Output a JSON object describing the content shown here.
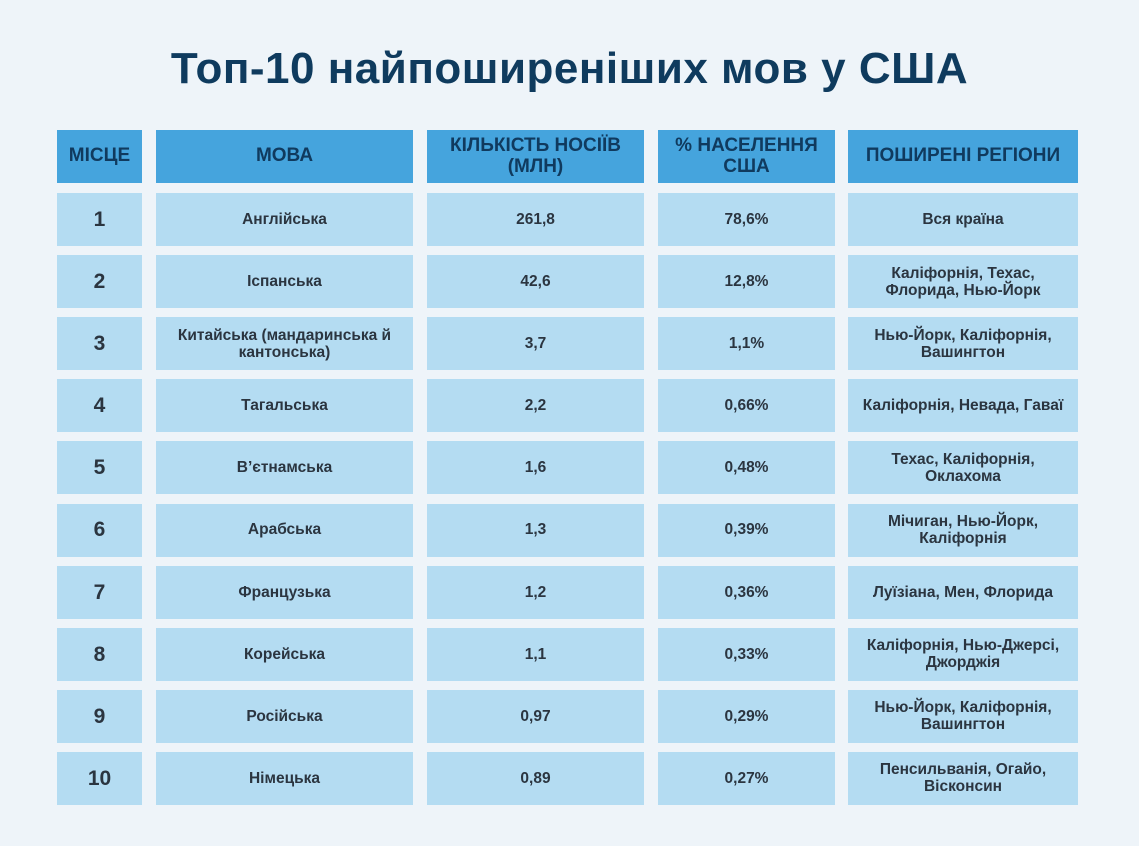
{
  "title": "Топ-10 найпоширеніших мов у США",
  "table": {
    "headers": [
      "МІСЦЕ",
      "МОВА",
      "КІЛЬКІСТЬ НОСІЇВ (МЛН)",
      "% НАСЕЛЕННЯ США",
      "ПОШИРЕНІ РЕГІОНИ"
    ],
    "rows": [
      [
        "1",
        "Англійська",
        "261,8",
        "78,6%",
        "Вся країна"
      ],
      [
        "2",
        "Іспанська",
        "42,6",
        "12,8%",
        "Каліфорнія, Техас, Флорида, Нью-Йорк"
      ],
      [
        "3",
        "Китайська (мандаринська й кантонська)",
        "3,7",
        "1,1%",
        "Нью-Йорк, Каліфорнія, Вашингтон"
      ],
      [
        "4",
        "Тагальська",
        "2,2",
        "0,66%",
        "Каліфорнія, Невада, Гаваї"
      ],
      [
        "5",
        "В’єтнамська",
        "1,6",
        "0,48%",
        "Техас, Каліфорнія, Оклахома"
      ],
      [
        "6",
        "Арабська",
        "1,3",
        "0,39%",
        "Мічиган, Нью-Йорк, Каліфорнія"
      ],
      [
        "7",
        "Французька",
        "1,2",
        "0,36%",
        "Луїзіана, Мен, Флорида"
      ],
      [
        "8",
        "Корейська",
        "1,1",
        "0,33%",
        "Каліфорнія, Нью-Джерсі, Джорджія"
      ],
      [
        "9",
        "Російська",
        "0,97",
        "0,29%",
        "Нью-Йорк, Каліфорнія, Вашингтон"
      ],
      [
        "10",
        "Німецька",
        "0,89",
        "0,27%",
        "Пенсильванія, Огайо, Вісконсин"
      ]
    ]
  }
}
